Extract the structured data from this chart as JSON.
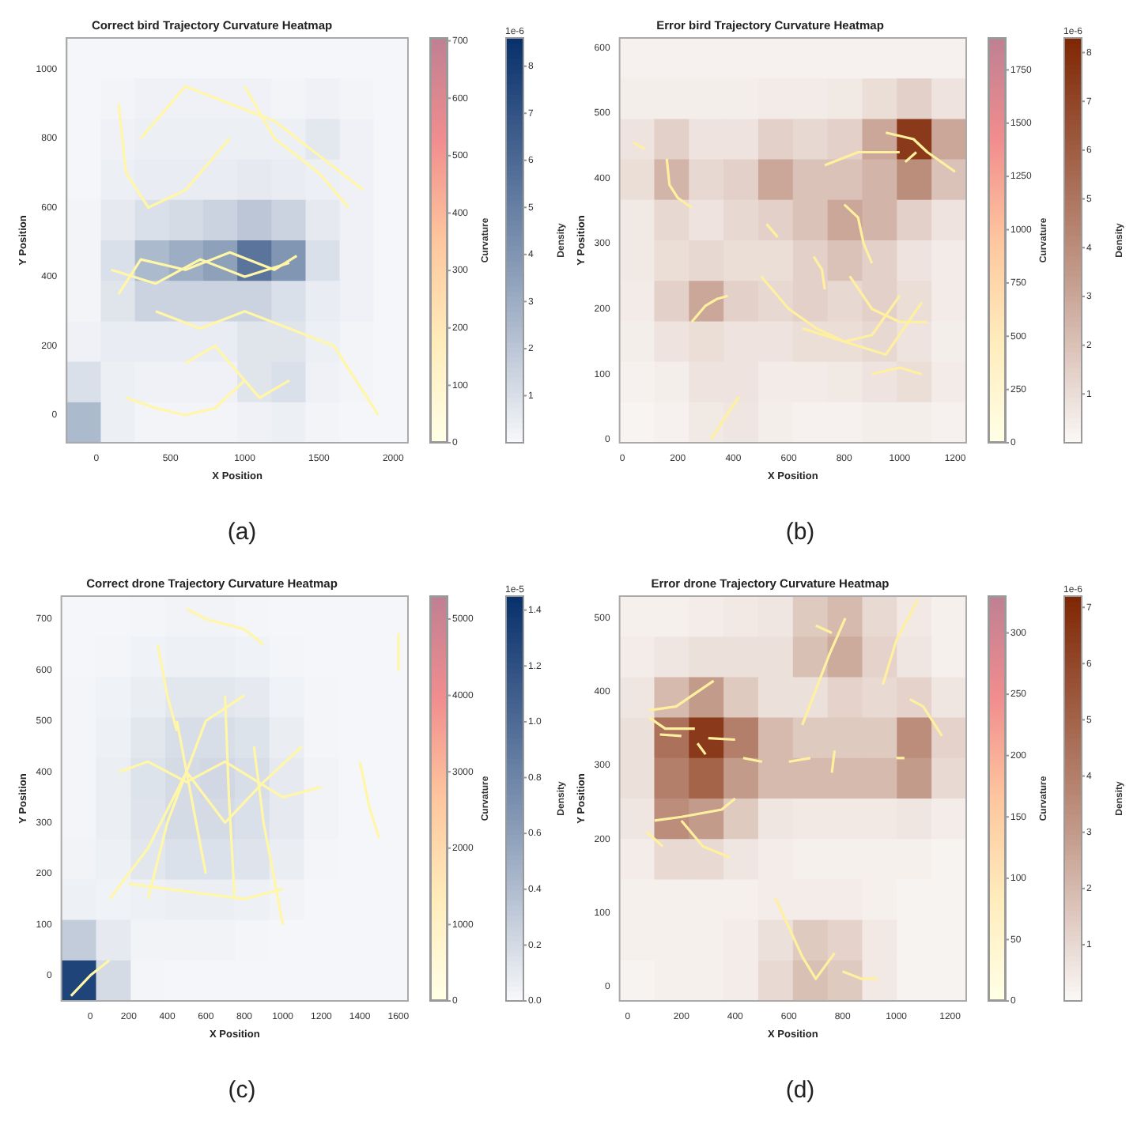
{
  "chart_data": [
    {
      "type": "heatmap",
      "title": "Correct bird Trajectory Curvature Heatmap",
      "xlabel": "X Position",
      "ylabel": "Y Position",
      "clabel": "Density",
      "y2label": "Curvature",
      "color": "#08306b",
      "xlim": [
        -200,
        2100
      ],
      "xticks": [
        0,
        500,
        1000,
        1500,
        2000
      ],
      "ylim": [
        -80,
        1090
      ],
      "yticks": [
        0,
        200,
        400,
        600,
        800,
        1000
      ],
      "clim": [
        0,
        8.6
      ],
      "cticks": [
        1,
        2,
        3,
        4,
        5,
        6,
        7,
        8
      ],
      "y2lim": [
        0,
        705
      ],
      "y2ticks": [
        0,
        100,
        200,
        300,
        400,
        500,
        600,
        700
      ],
      "annotations": [
        "1e-6",
        "(a)"
      ],
      "cells": [
        [
          0.1,
          0.1,
          0.1,
          0.1,
          0.1,
          0.1,
          0.1,
          0.1,
          0.1,
          0.1
        ],
        [
          0.1,
          0.2,
          0.3,
          0.3,
          0.3,
          0.3,
          0.2,
          0.3,
          0.2,
          0.1
        ],
        [
          0.1,
          0.3,
          0.4,
          0.4,
          0.4,
          0.4,
          0.4,
          0.7,
          0.3,
          0.1
        ],
        [
          0.1,
          0.4,
          0.5,
          0.5,
          0.5,
          0.6,
          0.5,
          0.4,
          0.3,
          0.1
        ],
        [
          0.2,
          0.6,
          1.0,
          1.2,
          1.5,
          2.0,
          1.5,
          0.6,
          0.3,
          0.1
        ],
        [
          0.2,
          1.0,
          2.5,
          3.0,
          3.5,
          5.5,
          4.0,
          1.0,
          0.3,
          0.1
        ],
        [
          0.2,
          0.8,
          1.5,
          1.5,
          1.5,
          1.5,
          1.0,
          0.5,
          0.3,
          0.1
        ],
        [
          0.3,
          0.5,
          0.5,
          0.5,
          0.5,
          0.8,
          0.8,
          0.4,
          0.2,
          0.1
        ],
        [
          1.0,
          0.4,
          0.3,
          0.3,
          0.3,
          0.8,
          1.0,
          0.3,
          0.2,
          0.1
        ],
        [
          2.5,
          0.4,
          0.2,
          0.2,
          0.2,
          0.3,
          0.4,
          0.2,
          0.1,
          0.1
        ]
      ],
      "series": [
        {
          "type": "line",
          "color": "#fff6a8",
          "x": [
            100,
            400,
            700,
            1000,
            1300
          ],
          "values": [
            420,
            380,
            450,
            400,
            440
          ]
        },
        {
          "type": "line",
          "color": "#fff6a8",
          "x": [
            150,
            300,
            600,
            900,
            1200,
            1350
          ],
          "values": [
            350,
            450,
            420,
            470,
            420,
            460
          ]
        },
        {
          "type": "line",
          "color": "#fff6a8",
          "x": [
            150,
            200,
            350,
            600,
            900
          ],
          "values": [
            900,
            700,
            600,
            650,
            800
          ]
        },
        {
          "type": "line",
          "color": "#fff6a8",
          "x": [
            300,
            600,
            900,
            1200,
            1500,
            1800
          ],
          "values": [
            800,
            950,
            900,
            850,
            750,
            650
          ]
        },
        {
          "type": "line",
          "color": "#fff6a8",
          "x": [
            400,
            700,
            1000,
            1300,
            1600,
            1900
          ],
          "values": [
            300,
            250,
            300,
            250,
            200,
            0
          ]
        },
        {
          "type": "line",
          "color": "#fff6a8",
          "x": [
            200,
            400,
            600,
            800,
            1000
          ],
          "values": [
            50,
            20,
            0,
            20,
            100
          ]
        },
        {
          "type": "line",
          "color": "#fff6a8",
          "x": [
            1000,
            1200,
            1500,
            1700
          ],
          "values": [
            950,
            800,
            700,
            600
          ]
        },
        {
          "type": "line",
          "color": "#fff6a8",
          "x": [
            600,
            800,
            1100,
            1300
          ],
          "values": [
            150,
            200,
            50,
            100
          ]
        }
      ]
    },
    {
      "type": "heatmap",
      "title": "Error bird Trajectory Curvature Heatmap",
      "xlabel": "X Position",
      "ylabel": "Y Position",
      "clabel": "Density",
      "y2label": "Curvature",
      "color": "#7f2704",
      "xlim": [
        -10,
        1240
      ],
      "xticks": [
        0,
        200,
        400,
        600,
        800,
        1000,
        1200
      ],
      "ylim": [
        -5,
        615
      ],
      "yticks": [
        0,
        100,
        200,
        300,
        400,
        500,
        600
      ],
      "clim": [
        0,
        8.3
      ],
      "cticks": [
        1,
        2,
        3,
        4,
        5,
        6,
        7,
        8
      ],
      "y2lim": [
        0,
        1900
      ],
      "y2ticks": [
        0,
        250,
        500,
        750,
        1000,
        1250,
        1500,
        1750
      ],
      "annotations": [
        "1e-6",
        "(b)"
      ],
      "cells": [
        [
          0.3,
          0.3,
          0.3,
          0.3,
          0.3,
          0.3,
          0.3,
          0.3,
          0.3,
          0.3
        ],
        [
          0.4,
          0.4,
          0.4,
          0.4,
          0.5,
          0.5,
          0.6,
          1.0,
          1.5,
          0.8
        ],
        [
          0.8,
          1.5,
          0.8,
          0.8,
          1.5,
          1.2,
          1.5,
          3.0,
          7.5,
          3.0
        ],
        [
          1.0,
          2.5,
          1.2,
          1.5,
          3.0,
          2.0,
          2.0,
          2.5,
          4.0,
          2.0
        ],
        [
          0.6,
          1.2,
          0.8,
          1.2,
          1.5,
          2.0,
          3.0,
          2.5,
          1.5,
          0.8
        ],
        [
          0.6,
          1.0,
          1.2,
          1.0,
          1.0,
          1.5,
          2.0,
          1.5,
          0.8,
          0.5
        ],
        [
          0.5,
          1.5,
          3.0,
          1.5,
          1.2,
          1.5,
          1.2,
          1.5,
          1.0,
          0.5
        ],
        [
          0.4,
          0.8,
          1.0,
          0.8,
          0.8,
          1.0,
          1.0,
          1.2,
          0.8,
          0.4
        ],
        [
          0.3,
          0.4,
          0.8,
          0.8,
          0.5,
          0.5,
          0.6,
          0.8,
          1.0,
          0.5
        ],
        [
          0.2,
          0.3,
          0.6,
          0.7,
          0.4,
          0.3,
          0.3,
          0.4,
          0.4,
          0.3
        ]
      ],
      "series": [
        {
          "type": "line",
          "color": "#fff0a0",
          "x": [
            40,
            80
          ],
          "values": [
            455,
            445
          ]
        },
        {
          "type": "line",
          "color": "#fff0a0",
          "x": [
            160,
            170,
            200,
            250
          ],
          "values": [
            430,
            390,
            370,
            355
          ]
        },
        {
          "type": "line",
          "color": "#fff0a0",
          "x": [
            250,
            300,
            340,
            380
          ],
          "values": [
            180,
            205,
            215,
            220
          ]
        },
        {
          "type": "line",
          "color": "#fff0a0",
          "x": [
            520,
            560
          ],
          "values": [
            330,
            310
          ]
        },
        {
          "type": "line",
          "color": "#fff0a0",
          "x": [
            730,
            850,
            1000
          ],
          "values": [
            420,
            440,
            440
          ]
        },
        {
          "type": "line",
          "color": "#fff0a0",
          "x": [
            950,
            1050,
            1100,
            1200
          ],
          "values": [
            470,
            460,
            440,
            410
          ]
        },
        {
          "type": "line",
          "color": "#fff0a0",
          "x": [
            1020,
            1060
          ],
          "values": [
            425,
            440
          ]
        },
        {
          "type": "line",
          "color": "#fff0a0",
          "x": [
            800,
            850,
            870,
            900
          ],
          "values": [
            360,
            340,
            300,
            270
          ]
        },
        {
          "type": "line",
          "color": "#fff0a0",
          "x": [
            820,
            900,
            1000,
            1100
          ],
          "values": [
            250,
            200,
            180,
            180
          ]
        },
        {
          "type": "line",
          "color": "#fff0a0",
          "x": [
            500,
            600,
            700,
            800,
            900,
            1000
          ],
          "values": [
            250,
            200,
            170,
            150,
            160,
            220
          ]
        },
        {
          "type": "line",
          "color": "#fff0a0",
          "x": [
            650,
            800,
            950,
            1080
          ],
          "values": [
            170,
            150,
            130,
            210
          ]
        },
        {
          "type": "line",
          "color": "#fff0a0",
          "x": [
            900,
            1000,
            1080
          ],
          "values": [
            100,
            110,
            100
          ]
        },
        {
          "type": "line",
          "color": "#fff0a0",
          "x": [
            320,
            380,
            420
          ],
          "values": [
            0,
            40,
            65
          ]
        },
        {
          "type": "line",
          "color": "#fff0a0",
          "x": [
            690,
            720,
            730
          ],
          "values": [
            280,
            260,
            230
          ]
        }
      ]
    },
    {
      "type": "heatmap",
      "title": "Correct drone Trajectory Curvature Heatmap",
      "xlabel": "X Position",
      "ylabel": "Y Position",
      "clabel": "Density",
      "y2label": "Curvature",
      "color": "#08306b",
      "xlim": [
        -150,
        1650
      ],
      "xticks": [
        0,
        200,
        400,
        600,
        800,
        1000,
        1200,
        1400,
        1600
      ],
      "ylim": [
        -50,
        745
      ],
      "yticks": [
        0,
        100,
        200,
        300,
        400,
        500,
        600,
        700
      ],
      "clim": [
        0,
        1.45
      ],
      "cticks": [
        {
          "value": 0,
          "label": "0.0"
        },
        {
          "value": 0.2,
          "label": "0.2"
        },
        {
          "value": 0.4,
          "label": "0.4"
        },
        {
          "value": 0.6,
          "label": "0.6"
        },
        {
          "value": 0.8,
          "label": "0.8"
        },
        {
          "value": 1,
          "label": "1.0"
        },
        {
          "value": 1.2,
          "label": "1.2"
        },
        {
          "value": 1.4,
          "label": "1.4"
        }
      ],
      "y2lim": [
        0,
        5300
      ],
      "y2ticks": [
        0,
        1000,
        2000,
        3000,
        4000,
        5000
      ],
      "annotations": [
        "1e-5",
        "(c)"
      ],
      "cells": [
        [
          0.02,
          0.02,
          0.03,
          0.04,
          0.04,
          0.03,
          0.02,
          0.02,
          0.02,
          0.02
        ],
        [
          0.02,
          0.03,
          0.05,
          0.06,
          0.06,
          0.05,
          0.03,
          0.02,
          0.02,
          0.02
        ],
        [
          0.03,
          0.05,
          0.08,
          0.12,
          0.12,
          0.1,
          0.05,
          0.03,
          0.02,
          0.02
        ],
        [
          0.03,
          0.06,
          0.12,
          0.18,
          0.18,
          0.15,
          0.08,
          0.03,
          0.02,
          0.02
        ],
        [
          0.03,
          0.07,
          0.15,
          0.2,
          0.22,
          0.18,
          0.1,
          0.04,
          0.02,
          0.02
        ],
        [
          0.03,
          0.07,
          0.14,
          0.2,
          0.2,
          0.17,
          0.1,
          0.04,
          0.02,
          0.02
        ],
        [
          0.04,
          0.06,
          0.12,
          0.16,
          0.16,
          0.14,
          0.08,
          0.03,
          0.02,
          0.02
        ],
        [
          0.06,
          0.05,
          0.06,
          0.07,
          0.07,
          0.06,
          0.04,
          0.02,
          0.02,
          0.02
        ],
        [
          0.3,
          0.1,
          0.04,
          0.04,
          0.04,
          0.03,
          0.02,
          0.02,
          0.02,
          0.02
        ],
        [
          1.3,
          0.2,
          0.03,
          0.02,
          0.02,
          0.02,
          0.02,
          0.02,
          0.02,
          0.02
        ]
      ],
      "series": [
        {
          "type": "line",
          "color": "#fff6a8",
          "x": [
            -100,
            0,
            100
          ],
          "values": [
            -40,
            0,
            30
          ]
        },
        {
          "type": "line",
          "color": "#fff6a8",
          "x": [
            100,
            300,
            500,
            700,
            900,
            1100
          ],
          "values": [
            150,
            250,
            400,
            300,
            380,
            450
          ]
        },
        {
          "type": "line",
          "color": "#fff6a8",
          "x": [
            150,
            300,
            500,
            700,
            1000,
            1200
          ],
          "values": [
            400,
            420,
            380,
            420,
            350,
            370
          ]
        },
        {
          "type": "line",
          "color": "#fff6a8",
          "x": [
            200,
            400,
            600,
            800,
            1000
          ],
          "values": [
            180,
            170,
            160,
            150,
            170
          ]
        },
        {
          "type": "line",
          "color": "#fff6a8",
          "x": [
            450,
            500,
            550,
            600
          ],
          "values": [
            500,
            400,
            300,
            200
          ]
        },
        {
          "type": "line",
          "color": "#fff6a8",
          "x": [
            700,
            720,
            750
          ],
          "values": [
            550,
            350,
            150
          ]
        },
        {
          "type": "line",
          "color": "#fff6a8",
          "x": [
            300,
            400,
            600,
            800
          ],
          "values": [
            150,
            300,
            500,
            550
          ]
        },
        {
          "type": "line",
          "color": "#fff6a8",
          "x": [
            500,
            600,
            800,
            900
          ],
          "values": [
            720,
            700,
            680,
            650
          ]
        },
        {
          "type": "line",
          "color": "#fff6a8",
          "x": [
            350,
            400,
            450
          ],
          "values": [
            650,
            550,
            480
          ]
        },
        {
          "type": "line",
          "color": "#fff6a8",
          "x": [
            1600,
            1600
          ],
          "values": [
            670,
            600
          ]
        },
        {
          "type": "line",
          "color": "#fff6a8",
          "x": [
            1400,
            1450,
            1500
          ],
          "values": [
            420,
            330,
            270
          ]
        },
        {
          "type": "line",
          "color": "#fff6a8",
          "x": [
            850,
            900,
            950,
            1000
          ],
          "values": [
            450,
            300,
            200,
            100
          ]
        }
      ]
    },
    {
      "type": "heatmap",
      "title": "Error drone Trajectory Curvature Heatmap",
      "xlabel": "X Position",
      "ylabel": "Y Position",
      "clabel": "Density",
      "y2label": "Curvature",
      "color": "#7f2704",
      "xlim": [
        -30,
        1260
      ],
      "xticks": [
        0,
        200,
        400,
        600,
        800,
        1000,
        1200
      ],
      "ylim": [
        -20,
        530
      ],
      "yticks": [
        0,
        100,
        200,
        300,
        400,
        500
      ],
      "clim": [
        0,
        7.2
      ],
      "cticks": [
        1,
        2,
        3,
        4,
        5,
        6,
        7
      ],
      "y2lim": [
        0,
        330
      ],
      "y2ticks": [
        0,
        50,
        100,
        150,
        200,
        250,
        300
      ],
      "annotations": [
        "1e-6",
        "(d)"
      ],
      "cells": [
        [
          0.3,
          0.3,
          0.4,
          0.5,
          0.6,
          1.5,
          2.0,
          1.0,
          0.5,
          0.3
        ],
        [
          0.4,
          0.6,
          0.8,
          0.8,
          0.8,
          1.8,
          2.5,
          1.2,
          0.6,
          0.3
        ],
        [
          0.6,
          2.0,
          3.0,
          1.5,
          0.8,
          0.8,
          1.2,
          1.0,
          1.2,
          0.6
        ],
        [
          0.8,
          4.5,
          6.5,
          4.0,
          2.0,
          1.5,
          1.5,
          1.5,
          3.5,
          1.2
        ],
        [
          0.8,
          4.0,
          5.0,
          3.0,
          2.0,
          2.0,
          2.0,
          2.0,
          3.0,
          1.0
        ],
        [
          0.6,
          3.5,
          3.0,
          1.5,
          0.6,
          0.5,
          0.5,
          0.5,
          0.6,
          0.4
        ],
        [
          0.4,
          1.0,
          1.0,
          0.6,
          0.4,
          0.3,
          0.3,
          0.3,
          0.3,
          0.2
        ],
        [
          0.3,
          0.3,
          0.3,
          0.3,
          0.4,
          0.4,
          0.4,
          0.3,
          0.2,
          0.2
        ],
        [
          0.3,
          0.3,
          0.3,
          0.4,
          0.8,
          1.5,
          1.2,
          0.5,
          0.2,
          0.2
        ],
        [
          0.2,
          0.3,
          0.3,
          0.4,
          1.0,
          1.8,
          1.5,
          0.5,
          0.2,
          0.2
        ]
      ],
      "series": [
        {
          "type": "line",
          "color": "#fff0a0",
          "x": [
            80,
            180,
            320
          ],
          "values": [
            375,
            380,
            415
          ]
        },
        {
          "type": "line",
          "color": "#fff0a0",
          "x": [
            80,
            140,
            250
          ],
          "values": [
            365,
            350,
            350
          ]
        },
        {
          "type": "line",
          "color": "#fff0a0",
          "x": [
            120,
            200
          ],
          "values": [
            342,
            340
          ]
        },
        {
          "type": "line",
          "color": "#fff0a0",
          "x": [
            260,
            290
          ],
          "values": [
            330,
            315
          ]
        },
        {
          "type": "line",
          "color": "#fff0a0",
          "x": [
            300,
            400
          ],
          "values": [
            337,
            335
          ]
        },
        {
          "type": "line",
          "color": "#fff0a0",
          "x": [
            430,
            500
          ],
          "values": [
            310,
            305
          ]
        },
        {
          "type": "line",
          "color": "#fff0a0",
          "x": [
            600,
            680
          ],
          "values": [
            305,
            310
          ]
        },
        {
          "type": "line",
          "color": "#fff0a0",
          "x": [
            100,
            200,
            350,
            400
          ],
          "values": [
            225,
            230,
            240,
            255
          ]
        },
        {
          "type": "line",
          "color": "#fff0a0",
          "x": [
            200,
            280,
            380
          ],
          "values": [
            225,
            190,
            175
          ]
        },
        {
          "type": "line",
          "color": "#fff0a0",
          "x": [
            70,
            130
          ],
          "values": [
            210,
            190
          ]
        },
        {
          "type": "line",
          "color": "#fff0a0",
          "x": [
            650,
            750,
            810
          ],
          "values": [
            355,
            450,
            500
          ]
        },
        {
          "type": "line",
          "color": "#fff0a0",
          "x": [
            700,
            760
          ],
          "values": [
            490,
            480
          ]
        },
        {
          "type": "line",
          "color": "#fff0a0",
          "x": [
            950,
            1000,
            1080
          ],
          "values": [
            410,
            470,
            525
          ]
        },
        {
          "type": "line",
          "color": "#fff0a0",
          "x": [
            1050,
            1100,
            1170
          ],
          "values": [
            390,
            380,
            340
          ]
        },
        {
          "type": "line",
          "color": "#fff0a0",
          "x": [
            1000,
            1030
          ],
          "values": [
            310,
            310
          ]
        },
        {
          "type": "line",
          "color": "#fff0a0",
          "x": [
            550,
            650,
            700,
            770
          ],
          "values": [
            120,
            40,
            10,
            45
          ]
        },
        {
          "type": "line",
          "color": "#fff0a0",
          "x": [
            800,
            870,
            930
          ],
          "values": [
            20,
            10,
            10
          ]
        },
        {
          "type": "line",
          "color": "#fff0a0",
          "x": [
            760,
            770
          ],
          "values": [
            290,
            320
          ]
        }
      ]
    }
  ]
}
